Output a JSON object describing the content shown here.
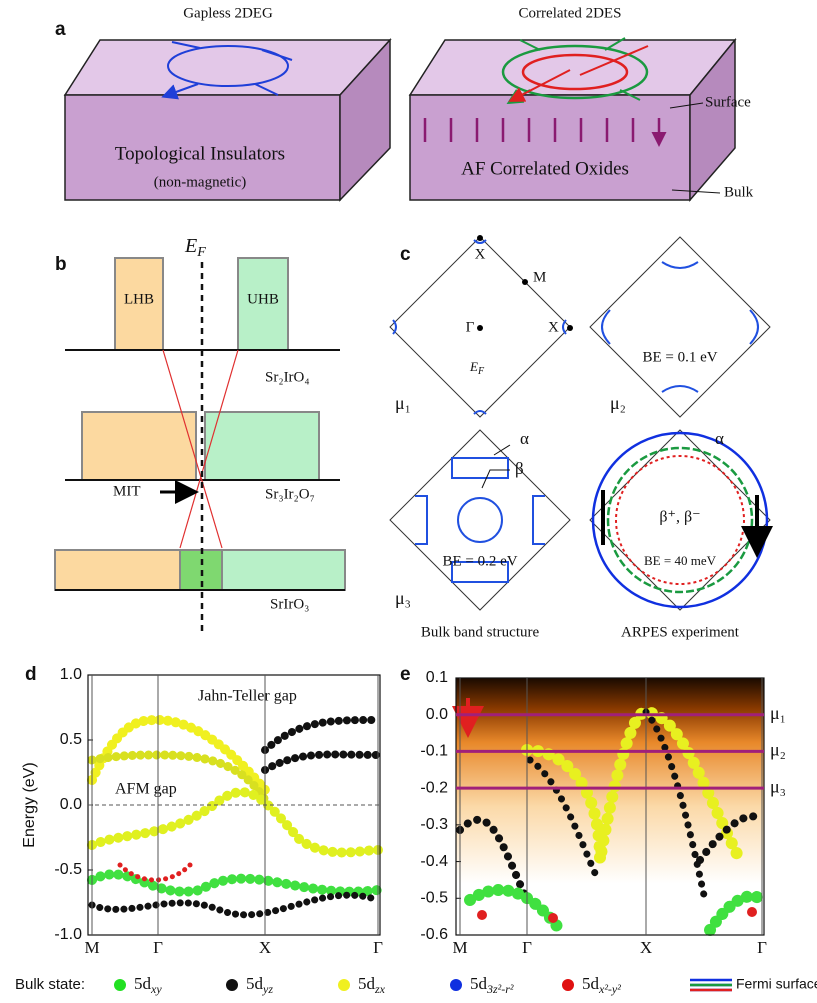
{
  "panel_a": {
    "label": "a",
    "left": {
      "title": "Gapless 2DEG",
      "text": "Topological Insulators",
      "subtext": "(non-magnetic)"
    },
    "right": {
      "title": "Correlated 2DES",
      "text": "AF Correlated Oxides",
      "surface": "Surface",
      "bulk": "Bulk"
    }
  },
  "panel_b": {
    "label": "b",
    "ef": "E",
    "ef_sub": "F",
    "lhb": "LHB",
    "uhb": "UHB",
    "mit": "MIT",
    "compounds": [
      "Sr₂IrO₄",
      "Sr₃Ir₂O₇",
      "SrIrO₃"
    ]
  },
  "panel_c": {
    "label": "c",
    "x": "X",
    "m": "M",
    "gamma": "Γ",
    "ef": "E",
    "ef_sub": "F",
    "mu": [
      "μ₁",
      "μ₂",
      "μ₃"
    ],
    "be": [
      "BE = 0.1 eV",
      "BE = 0.2 eV",
      "BE = 40 meV"
    ],
    "alpha": "α",
    "beta": "β",
    "beta_pm": "β⁺, β⁻",
    "captions": [
      "Bulk band structure",
      "ARPES experiment"
    ]
  },
  "panel_d": {
    "label": "d",
    "ylabel": "Energy (eV)",
    "ylim": [
      -1,
      1
    ],
    "yticks": [
      {
        "value": -1,
        "label": "-1.0"
      },
      {
        "value": -0.5,
        "label": "-0.5"
      },
      {
        "value": 0,
        "label": "0.0"
      },
      {
        "value": 0.5,
        "label": "0.5"
      },
      {
        "value": 1,
        "label": "1.0"
      }
    ],
    "categories": [
      "M",
      "Γ",
      "X",
      "Γ"
    ],
    "annotations": [
      "Jahn-Teller gap",
      "AFM gap"
    ]
  },
  "panel_e": {
    "label": "e",
    "ylim": [
      -0.6,
      0.1
    ],
    "yticks": [
      {
        "value": -0.6,
        "label": "-0.6"
      },
      -0.5,
      -0.4,
      -0.3,
      -0.2,
      -0.1,
      {
        "value": 0,
        "label": "0.0"
      },
      0.1
    ],
    "categories": [
      "M",
      "Γ",
      "X",
      "Γ"
    ],
    "levels": [
      {
        "name": "μ₁",
        "value": 0
      },
      {
        "name": "μ₂",
        "value": -0.1
      },
      {
        "name": "μ₃",
        "value": -0.2
      }
    ]
  },
  "legend": {
    "title": "Bulk state:",
    "items": [
      {
        "main": "5d",
        "sub": "xy",
        "color": "#22e022"
      },
      {
        "main": "5d",
        "sub": "yz",
        "color": "#111111"
      },
      {
        "main": "5d",
        "sub": "zx",
        "color": "#f0f020"
      },
      {
        "main": "5d",
        "sub": "3z²-r²",
        "color": "#1030e0"
      },
      {
        "main": "5d",
        "sub": "x²-y²",
        "color": "#e01010"
      }
    ],
    "fermi": "Fermi surfaces (exp.)"
  }
}
